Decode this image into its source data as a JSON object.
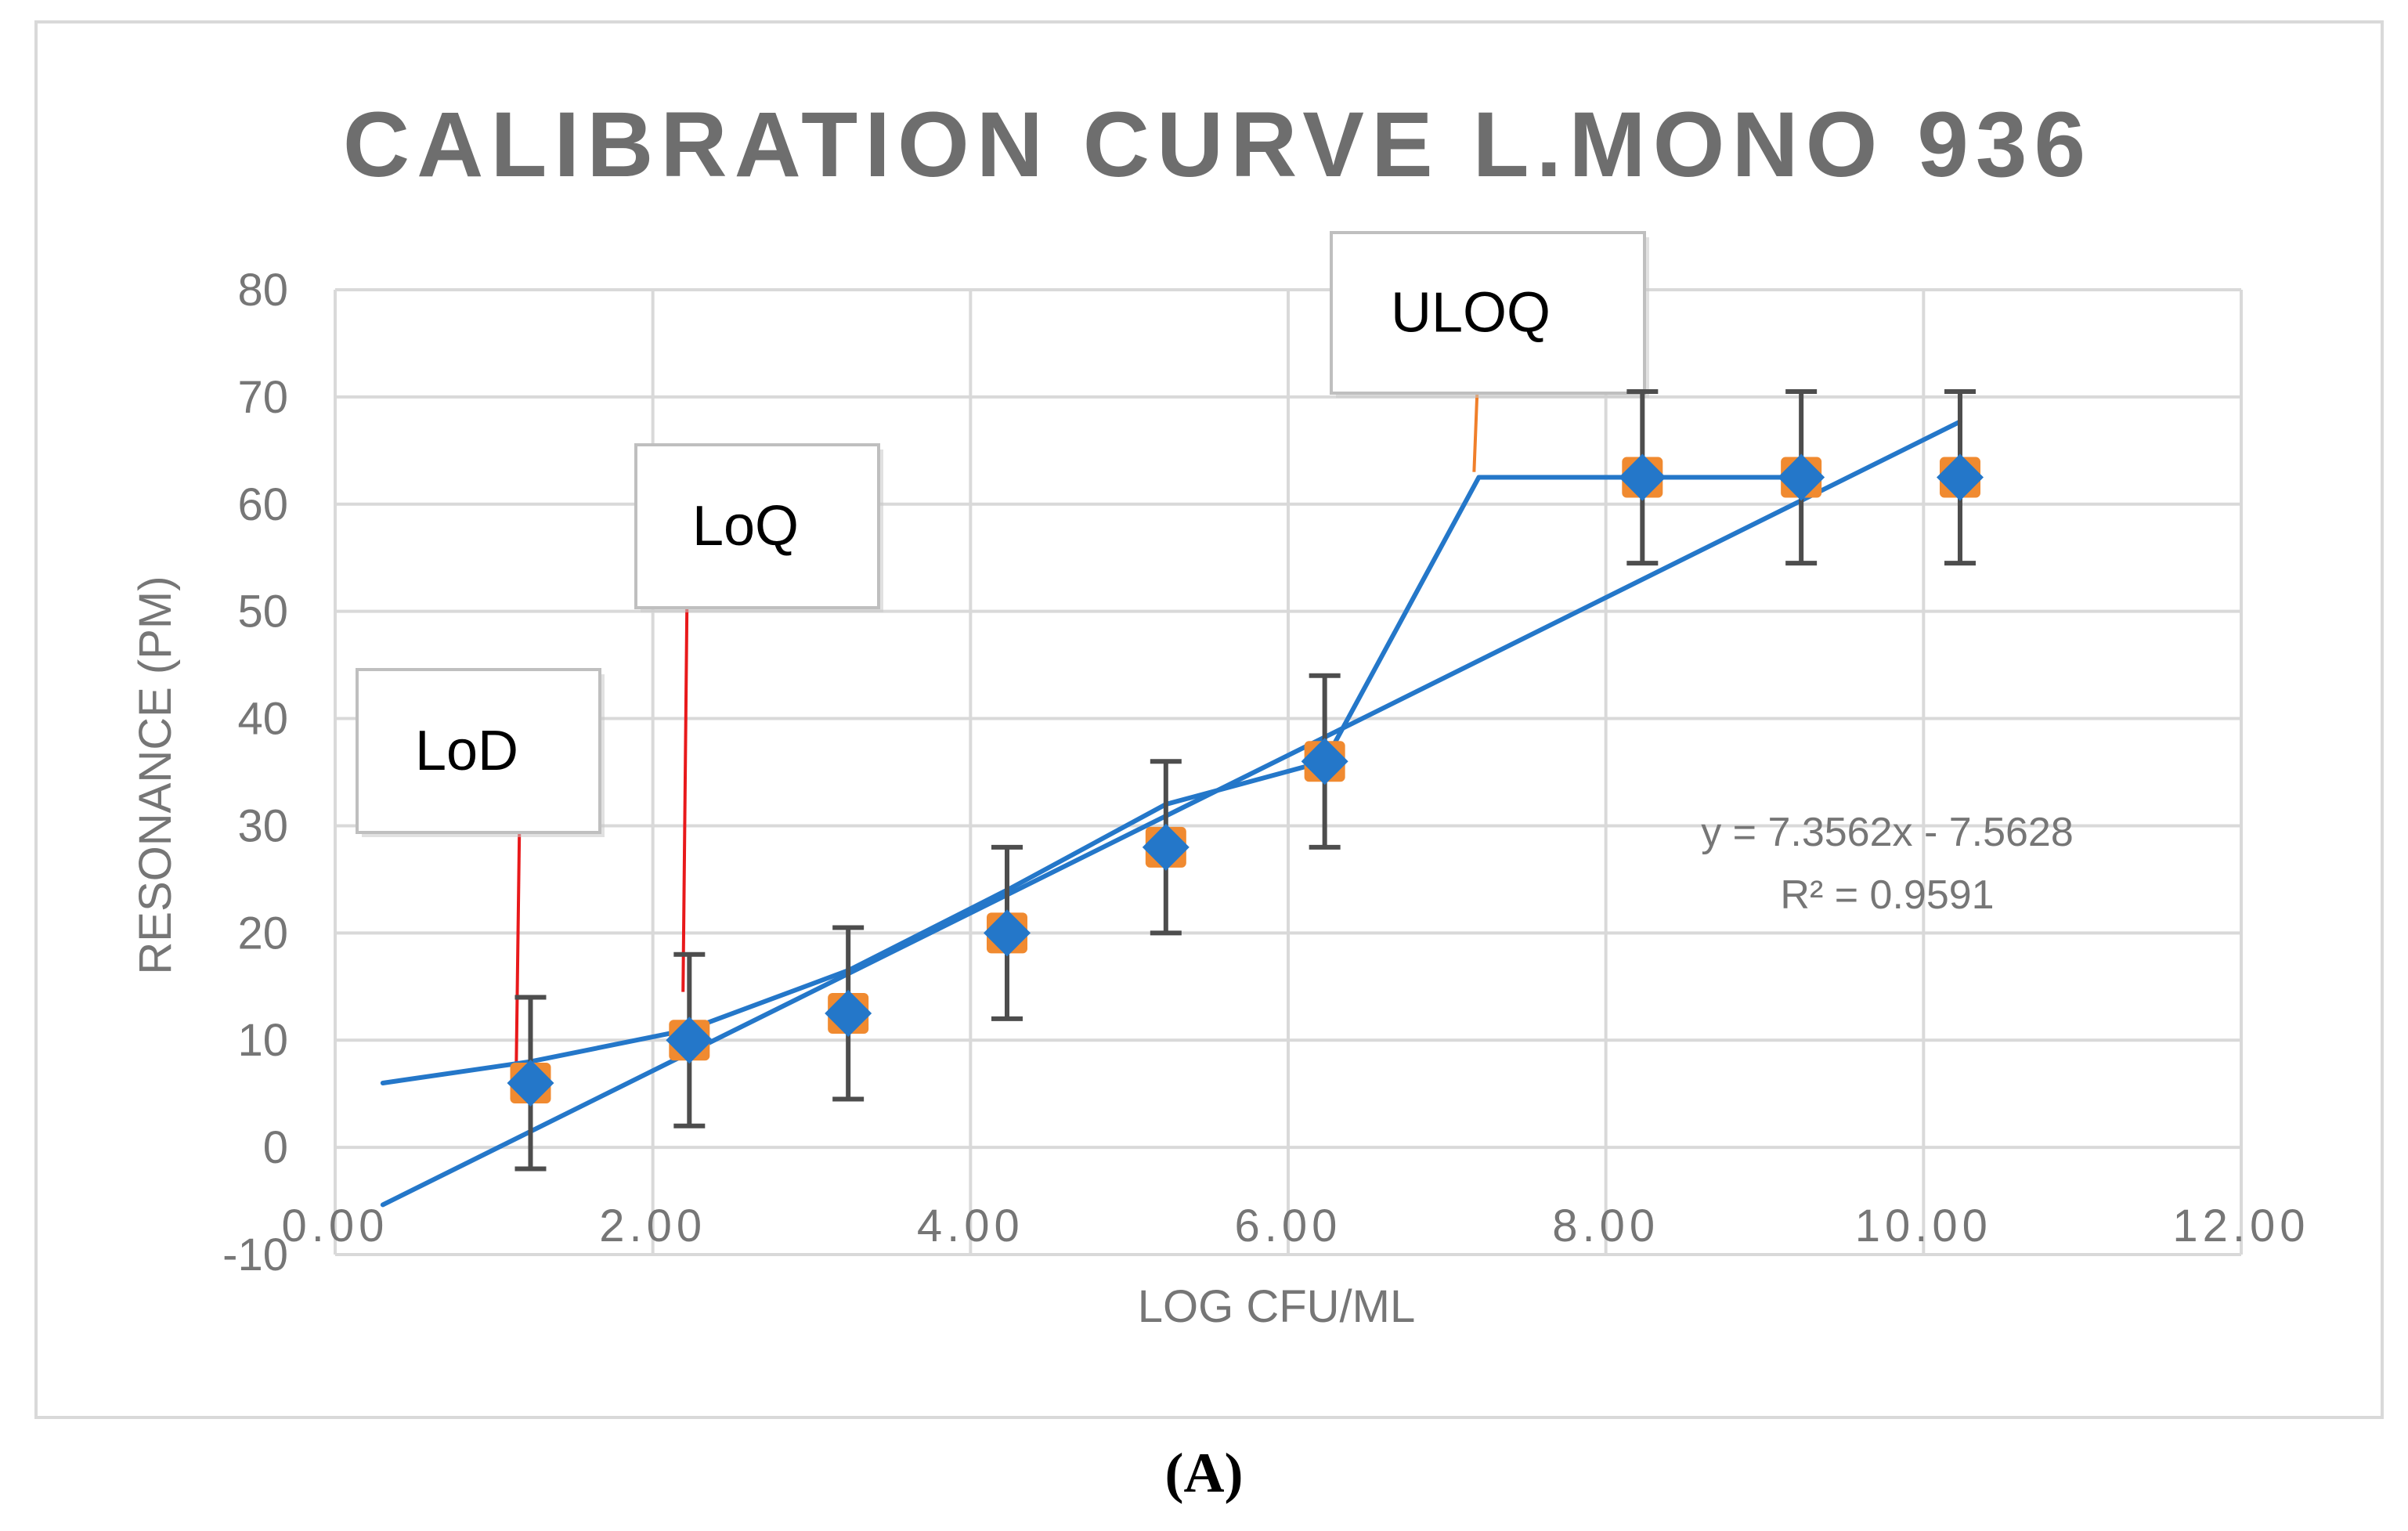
{
  "panel_label": "(A)",
  "chart_data": {
    "type": "scatter",
    "title": "CALIBRATION CURVE L.MONO 936",
    "xlabel": "LOG CFU/ML",
    "ylabel": "RESONANCE (PM)",
    "xlim": [
      0,
      12
    ],
    "ylim": [
      -10,
      80
    ],
    "x_ticks": [
      0,
      2,
      4,
      6,
      8,
      10,
      12
    ],
    "x_tick_labels": [
      "0.00",
      "2.00",
      "4.00",
      "6.00",
      "8.00",
      "10.00",
      "12.00"
    ],
    "y_ticks": [
      -10,
      0,
      10,
      20,
      30,
      40,
      50,
      60,
      70,
      80
    ],
    "y_tick_labels": [
      "-10",
      "0",
      "10",
      "20",
      "30",
      "40",
      "50",
      "60",
      "70",
      "80"
    ],
    "grid": true,
    "legend": false,
    "points": {
      "x": [
        1.23,
        2.23,
        3.23,
        4.23,
        5.23,
        6.23,
        8.23,
        9.23,
        10.23
      ],
      "y": [
        6,
        10,
        12.5,
        20,
        28,
        36,
        62.5,
        62.5,
        62.5
      ],
      "error": [
        8,
        8,
        8,
        8,
        8,
        8,
        8,
        8,
        8
      ]
    },
    "connecting_line": {
      "x": [
        0.3,
        1.23,
        2.23,
        3.23,
        4.23,
        5.23,
        6.23,
        7.2,
        8.23,
        9.23
      ],
      "y": [
        6,
        8,
        11,
        16.5,
        24,
        32,
        36,
        62.5,
        62.5,
        62.5
      ]
    },
    "trendline": {
      "slope": 7.3562,
      "intercept": -7.5628,
      "x_range": [
        0.3,
        10.23
      ],
      "equation": "y = 7.3562x - 7.5628",
      "r2": "R² = 0.9591"
    },
    "annotations": [
      {
        "name": "lod",
        "text": "LoD",
        "x": 1.15,
        "y_from": 29.5,
        "y_to": 7.5,
        "leader_color": "#e8191b"
      },
      {
        "name": "loq",
        "text": "LoQ",
        "x": 2.2,
        "y_from": 50.5,
        "y_to": 14.5,
        "leader_color": "#e8191b"
      },
      {
        "name": "uloq",
        "text": "ULOQ",
        "x": 7.18,
        "y_from": 70.5,
        "y_to": 63,
        "leader_color": "#f07f2a"
      }
    ],
    "colors": {
      "marker": "#2477c9",
      "marker_back": "#f08a30",
      "line": "#2477c9",
      "error_bar": "#4d4d4d",
      "grid": "#d9d9d9",
      "text": "#767676",
      "title": "#6e6e6e"
    }
  }
}
